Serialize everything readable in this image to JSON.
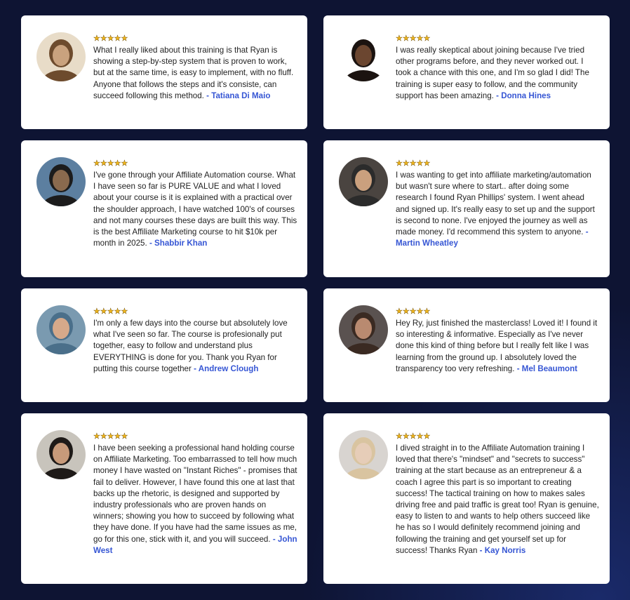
{
  "colors": {
    "background": "#0e1433",
    "card": "#ffffff",
    "name": "#3656d4",
    "star": "#f2b619"
  },
  "star_icon": "star-icon",
  "rating": 5,
  "testimonials": [
    {
      "stars": "★★★★★",
      "text": "What I really liked about this training is that Ryan is showing a step-by-step system that is proven to work, but at the same time, is easy to implement, with no fluff. Anyone that follows the steps and it's consiste, can succeed following this method.",
      "name": "- Tatiana Di Maio"
    },
    {
      "stars": "★★★★★",
      "text": "I was really skeptical about joining because I've tried other programs before, and they never worked out. I took a chance with this one, and I'm so glad I did! The training is super easy to follow, and the community support has been amazing.",
      "name": "- Donna Hines"
    },
    {
      "stars": "★★★★★",
      "text": "I've gone through your Affiliate Automation course. What I have seen so far is PURE VALUE and what I loved about your course is it is explained with a practical over the shoulder approach, I have watched 100's of courses and not many courses these days are built this way. This is the best Affiliate Marketing course to hit $10k per month in 2025.",
      "name": "- Shabbir Khan"
    },
    {
      "stars": "★★★★★",
      "text": "I was wanting to get into affiliate marketing/automation but wasn't sure where to start.. after doing some research I found Ryan Phillips' system. I went ahead and signed up. It's really easy to set up and the support is second to none. I've enjoyed the journey as well as made money. I'd recommend this system to anyone.",
      "name": "- Martin Wheatley"
    },
    {
      "stars": "★★★★★",
      "text": "I'm only a few days into the course but absolutely love what I've seen so far. The course is profesionally put together, easy to follow and understand plus EVERYTHING is done for you. Thank you Ryan for putting this course together",
      "name": "- Andrew Clough"
    },
    {
      "stars": "★★★★★",
      "text": "Hey Ry, just finished the masterclass! Loved it! I found it so interesting & informative. Especially as I've never done this kind of thing before but I really felt like I was learning from the ground up. I absolutely loved the transparency too very refreshing.",
      "name": "- Mel Beaumont"
    },
    {
      "stars": "★★★★★",
      "text": "I have been seeking a professional hand holding course on Affiliate Marketing. Too embarrassed to tell how much money I have wasted on \"Instant Riches\" - promises that fail to deliver. However, I have found this one at last that backs up the rhetoric, is designed and supported by industry professionals who are proven hands on winners; showing you how to succeed by following what they have done. If you have had the same issues as me, go for this one, stick with it, and you will succeed.",
      "name": "- John West"
    },
    {
      "stars": "★★★★★",
      "text": "I dived straight in to the Affiliate Automation training I loved that there's \"mindset\" and \"secrets to success\" training at the start because as an entrepreneur & a coach I agree this part is so important to creating success! The tactical training on how to makes sales driving free and paid traffic is great too! Ryan is genuine, easy to listen to and wants to help others succeed like he has so I would definitely recommend joining and following the training and get yourself set up for success! Thanks Ryan ",
      "name": "- Kay Norris"
    }
  ]
}
